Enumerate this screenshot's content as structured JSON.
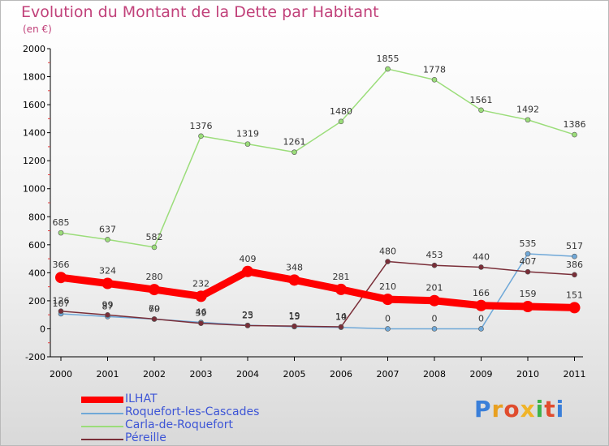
{
  "header": {
    "title": "Evolution du Montant de la Dette par Habitant",
    "subtitle": "(en €)"
  },
  "logo": {
    "text": "Proxiti",
    "colors": [
      "#3a7fd9",
      "#e8a020",
      "#e04c2e",
      "#f0b429",
      "#3db34a",
      "#e04c2e",
      "#3a7fd9"
    ]
  },
  "chart_data": {
    "type": "line",
    "title": "Evolution du Montant de la Dette par Habitant",
    "subtitle": "(en €)",
    "x": [
      "2000",
      "2001",
      "2002",
      "2003",
      "2004",
      "2005",
      "2006",
      "2007",
      "2008",
      "2009",
      "2010",
      "2011"
    ],
    "ylim": [
      -200,
      2000
    ],
    "yticks": [
      "-200",
      "0",
      "200",
      "400",
      "600",
      "800",
      "1000",
      "1200",
      "1400",
      "1600",
      "1800",
      "2000"
    ],
    "grid": false,
    "legend_placement": "bottom-left",
    "series": [
      {
        "name": "ILHAT",
        "color": "#ff0000",
        "values": [
          366,
          324,
          280,
          232,
          409,
          348,
          281,
          210,
          201,
          166,
          159,
          151
        ],
        "labels": [
          "366",
          "324",
          "280",
          "232",
          "409",
          "348",
          "281",
          "210",
          "201",
          "166",
          "159",
          "151"
        ]
      },
      {
        "name": "Roquefort-les-Cascades",
        "color": "#6fa8d8",
        "values": [
          107,
          87,
          69,
          46,
          25,
          15,
          10,
          0,
          0,
          0,
          535,
          517
        ],
        "labels": [
          "107",
          "87",
          "69",
          "46",
          "25",
          "15",
          "10",
          "0",
          "0",
          "0",
          "535",
          "517"
        ]
      },
      {
        "name": "Carla-de-Roquefort",
        "color": "#9bdd7a",
        "values": [
          685,
          637,
          582,
          1376,
          1319,
          1261,
          1480,
          1855,
          1778,
          1561,
          1492,
          1386
        ],
        "labels": [
          "685",
          "637",
          "582",
          "1376",
          "1319",
          "1261",
          "1480",
          "1855",
          "1778",
          "1561",
          "1492",
          "1386"
        ]
      },
      {
        "name": "Péreille",
        "color": "#7a2e38",
        "values": [
          126,
          99,
          70,
          39,
          23,
          19,
          14,
          480,
          453,
          440,
          407,
          386
        ],
        "labels": [
          "126",
          "99",
          "70",
          "39",
          "23",
          "19",
          "14",
          "480",
          "453",
          "440",
          "407",
          "386"
        ]
      }
    ]
  }
}
